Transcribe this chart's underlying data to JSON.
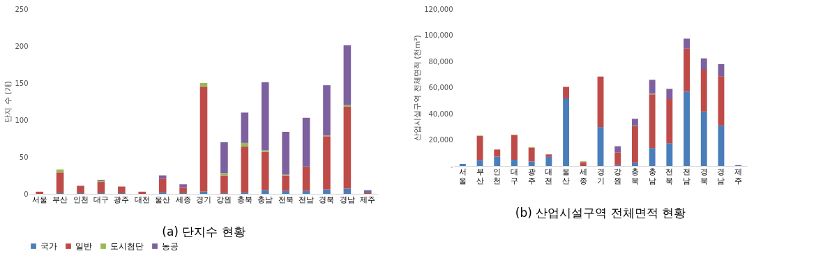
{
  "chart_data": [
    {
      "type": "bar",
      "title": "(a) 단지수 현황",
      "ylabel": "단지 수 (개)",
      "stacked": true,
      "legend": "bottom",
      "categories": [
        "서울",
        "부산",
        "인천",
        "대구",
        "광주",
        "대전",
        "울산",
        "세종",
        "경기",
        "강원",
        "충북",
        "충남",
        "전북",
        "전남",
        "경북",
        "경남",
        "제주"
      ],
      "ylim": [
        0,
        250
      ],
      "yticks": [
        0,
        50,
        100,
        150,
        200,
        250
      ],
      "series": [
        {
          "name": "국가",
          "color": "#4a7ebb",
          "values": [
            0,
            1,
            1,
            1,
            1,
            0,
            2,
            1,
            3,
            1,
            2,
            5,
            4,
            4,
            6,
            7,
            0
          ]
        },
        {
          "name": "일반",
          "color": "#be4b48",
          "values": [
            3,
            28,
            10,
            15,
            9,
            3,
            19,
            8,
            142,
            24,
            62,
            52,
            21,
            33,
            72,
            111,
            1
          ]
        },
        {
          "name": "도시첨단",
          "color": "#98b954",
          "values": [
            0,
            4,
            0,
            2,
            0,
            0,
            0,
            0,
            5,
            3,
            5,
            2,
            1,
            0,
            1,
            2,
            0
          ]
        },
        {
          "name": "농공",
          "color": "#7d60a0",
          "values": [
            0,
            0,
            0,
            1,
            0,
            0,
            4,
            4,
            0,
            42,
            41,
            92,
            58,
            66,
            68,
            81,
            4
          ]
        }
      ]
    },
    {
      "type": "bar",
      "title": "(b) 산업시설구역 전체면적 현황",
      "ylabel": "산업시설구역 전체면적 (천m²)",
      "stacked": true,
      "legend": "bottom",
      "categories": [
        "서울",
        "부산",
        "인천",
        "대구",
        "광주",
        "대전",
        "울산",
        "세종",
        "경기",
        "강원",
        "충북",
        "충남",
        "전북",
        "전남",
        "경북",
        "경남",
        "제주"
      ],
      "ylim": [
        0,
        120000
      ],
      "yticks": [
        {
          "value": 0,
          "label": "-"
        },
        {
          "value": 20000,
          "label": "20,000"
        },
        {
          "value": 40000,
          "label": "40,000"
        },
        {
          "value": 60000,
          "label": "60,000"
        },
        {
          "value": 80000,
          "label": "80,000"
        },
        {
          "value": 100000,
          "label": "100,000"
        },
        {
          "value": 120000,
          "label": "120,000"
        }
      ],
      "series": [
        {
          "name": "국가",
          "color": "#4a7ebb",
          "values": [
            1600,
            4400,
            7200,
            4800,
            3500,
            7000,
            51700,
            0,
            29800,
            700,
            2500,
            13800,
            17500,
            56900,
            41700,
            31000,
            0
          ]
        },
        {
          "name": "일반",
          "color": "#be4b48",
          "values": [
            0,
            18500,
            5400,
            19000,
            10500,
            1900,
            8800,
            3000,
            38600,
            9800,
            28000,
            41000,
            33700,
            32800,
            31900,
            37700,
            0
          ]
        },
        {
          "name": "도시첨단",
          "color": "#98b954",
          "values": [
            0,
            400,
            0,
            0,
            500,
            0,
            0,
            600,
            0,
            0,
            300,
            500,
            0,
            0,
            0,
            0,
            0
          ]
        },
        {
          "name": "농공",
          "color": "#7d60a0",
          "values": [
            0,
            0,
            0,
            0,
            0,
            0,
            0,
            0,
            0,
            4600,
            5300,
            10600,
            7800,
            7700,
            8700,
            9200,
            700
          ]
        }
      ]
    }
  ]
}
